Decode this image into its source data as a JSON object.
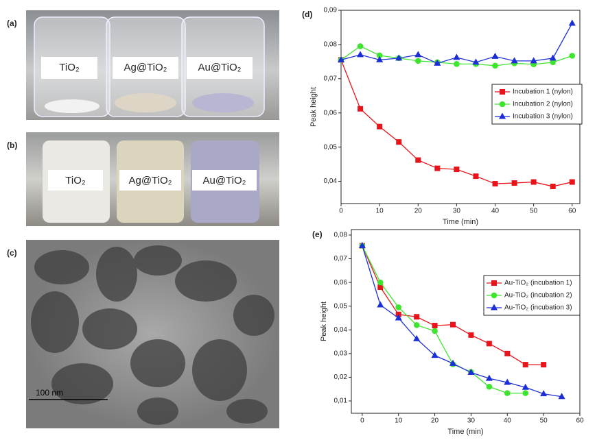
{
  "panels": [
    {
      "label": "(a)",
      "texts": [
        "TiO₂",
        "Ag@TiO₂",
        "Au@TiO₂"
      ]
    },
    {
      "label": "(b)",
      "texts": [
        "TiO₂",
        "Ag@TiO₂",
        "Au@TiO₂"
      ]
    },
    {
      "label": "(c)",
      "scale_bar": "100 nm"
    }
  ],
  "chart_data": [
    {
      "type": "line",
      "panel_label": "(d)",
      "xlabel": "Time (min)",
      "ylabel": "Peak height",
      "x": [
        0,
        5,
        10,
        15,
        20,
        25,
        30,
        35,
        40,
        45,
        50,
        55,
        60
      ],
      "xlim": [
        0,
        62
      ],
      "xticks": [
        0,
        10,
        20,
        30,
        40,
        50,
        60
      ],
      "ylim": [
        0.0335,
        0.09
      ],
      "yticks": [
        {
          "value": 0.04,
          "label": "0,04"
        },
        {
          "value": 0.05,
          "label": "0,05"
        },
        {
          "value": 0.06,
          "label": "0,06"
        },
        {
          "value": 0.07,
          "label": "0,07"
        },
        {
          "value": 0.08,
          "label": "0,08"
        },
        {
          "value": 0.09,
          "label": "0,09"
        }
      ],
      "legend": "center right",
      "series": [
        {
          "name": "Incubation 1 (nylon)",
          "color": "#e8141b",
          "marker": "square",
          "values": [
            0.0755,
            0.0612,
            0.056,
            0.0515,
            0.0462,
            0.0438,
            0.0435,
            0.0415,
            0.0393,
            0.0395,
            0.0398,
            0.0385,
            0.0398
          ]
        },
        {
          "name": "Incubation 2 (nylon)",
          "color": "#3ee52e",
          "marker": "circle",
          "values": [
            0.0755,
            0.0795,
            0.0768,
            0.076,
            0.0752,
            0.0748,
            0.0743,
            0.0743,
            0.0738,
            0.0745,
            0.0742,
            0.0748,
            0.0767
          ]
        },
        {
          "name": "Incubation 3 (nylon)",
          "color": "#1c2fd6",
          "marker": "triangle",
          "values": [
            0.0755,
            0.077,
            0.0755,
            0.076,
            0.077,
            0.0745,
            0.0762,
            0.0748,
            0.0765,
            0.0752,
            0.0752,
            0.076,
            0.0862
          ]
        }
      ]
    },
    {
      "type": "line",
      "panel_label": "(e)",
      "xlabel": "Time (min)",
      "ylabel": "Peak height",
      "xlim": [
        -3,
        60
      ],
      "xticks": [
        0,
        10,
        20,
        30,
        40,
        50,
        60
      ],
      "ylim": [
        0.0048,
        0.0823
      ],
      "yticks": [
        {
          "value": 0.01,
          "label": "0,01"
        },
        {
          "value": 0.02,
          "label": "0,02"
        },
        {
          "value": 0.03,
          "label": "0,03"
        },
        {
          "value": 0.04,
          "label": "0,04"
        },
        {
          "value": 0.05,
          "label": "0,05"
        },
        {
          "value": 0.06,
          "label": "0,06"
        },
        {
          "value": 0.07,
          "label": "0,07"
        },
        {
          "value": 0.08,
          "label": "0,08"
        }
      ],
      "legend": "center right",
      "series": [
        {
          "name": "Au-TiO₂ (incubation 1)",
          "color": "#e8141b",
          "marker": "square",
          "x": [
            0,
            5,
            10,
            15,
            20,
            25,
            30,
            35,
            40,
            45,
            50
          ],
          "values": [
            0.0755,
            0.058,
            0.0465,
            0.0455,
            0.0418,
            0.0422,
            0.0378,
            0.0342,
            0.03,
            0.0253,
            0.0253
          ]
        },
        {
          "name": "Au-TiO₂ (incubation 2)",
          "color": "#3ee52e",
          "marker": "circle",
          "x": [
            0,
            5,
            10,
            15,
            20,
            25,
            30,
            35,
            40,
            45
          ],
          "values": [
            0.0755,
            0.06,
            0.0495,
            0.042,
            0.0395,
            0.0255,
            0.0222,
            0.016,
            0.0133,
            0.0133
          ]
        },
        {
          "name": "Au-TiO₂ (incubation 3)",
          "color": "#1c2fd6",
          "marker": "triangle",
          "x": [
            0,
            5,
            10,
            15,
            20,
            25,
            30,
            35,
            40,
            45,
            50,
            55
          ],
          "values": [
            0.0755,
            0.0505,
            0.045,
            0.0362,
            0.0292,
            0.0258,
            0.022,
            0.0195,
            0.0178,
            0.0157,
            0.013,
            0.0118
          ]
        }
      ]
    }
  ]
}
